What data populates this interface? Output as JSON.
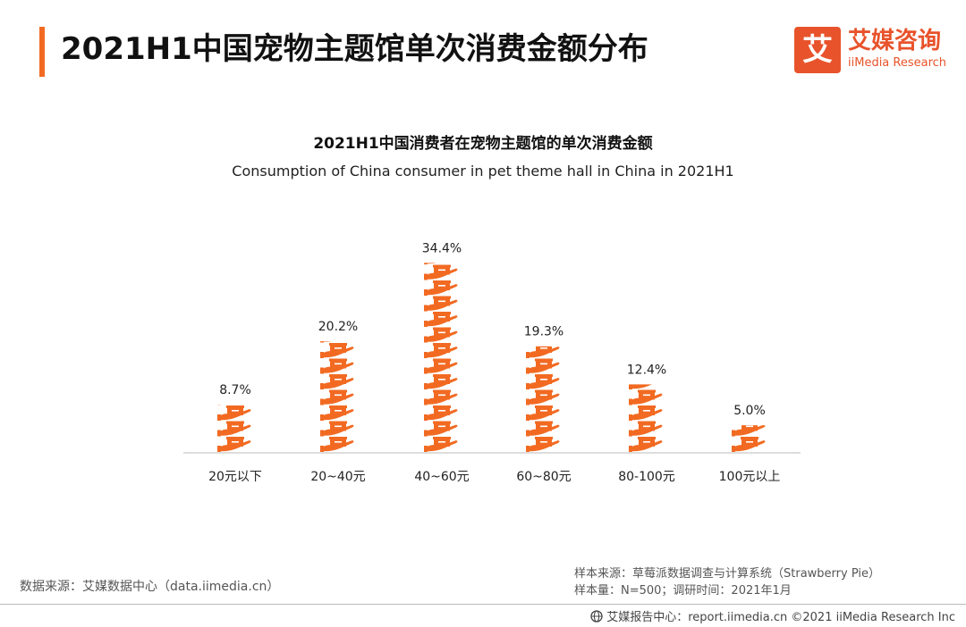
{
  "page_title": "2021H1中国宠物主题馆单次消费金额分布",
  "logo": {
    "mark": "艾",
    "name_cn": "艾媒咨询",
    "name_en": "iiMedia Research"
  },
  "source_left": "数据来源：艾媒数据中心（data.iimedia.cn）",
  "source_right": {
    "line1": "样本来源：草莓派数据调查与计算系统（Strawberry Pie）",
    "line2": "样本量：N=500；调研时间：2021年1月"
  },
  "footer": "艾媒报告中心：report.iimedia.cn  ©2021  iiMedia Research  Inc",
  "colors": {
    "accent": "#f26a22",
    "brand": "#e8532b",
    "axis": "#bbbbbb"
  },
  "chart_data": {
    "type": "bar",
    "title": "2021H1中国消费者在宠物主题馆的单次消费金额",
    "subtitle": "Consumption of China consumer in pet theme hall in China in 2021H1",
    "categories": [
      "20元以下",
      "20~40元",
      "40~60元",
      "60~80元",
      "80-100元",
      "100元以上"
    ],
    "values": [
      8.7,
      20.2,
      34.4,
      19.3,
      12.4,
      5.0
    ],
    "value_labels": [
      "8.7%",
      "20.2%",
      "34.4%",
      "19.3%",
      "12.4%",
      "5.0%"
    ],
    "unit": "%",
    "mark_icon": "hand-holding-box-icon",
    "grid": false
  }
}
